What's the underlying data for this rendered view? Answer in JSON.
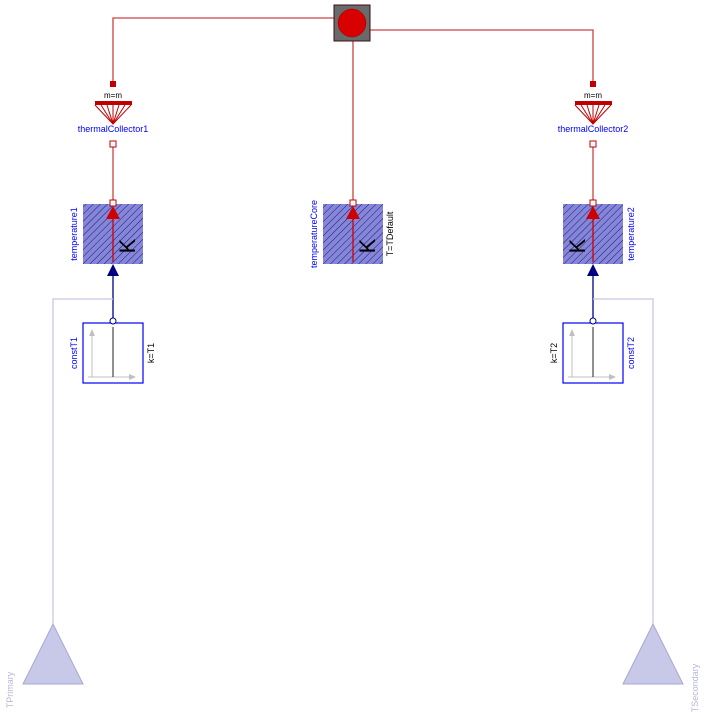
{
  "components": {
    "thermal_collector_1": {
      "name": "thermalCollector1",
      "equation": "m=m"
    },
    "thermal_collector_2": {
      "name": "thermalCollector2",
      "equation": "m=m"
    },
    "temperature_1": {
      "name": "temperature1",
      "unit": "K"
    },
    "temperature_core": {
      "name": "temperatureCore",
      "unit": "K",
      "parameter": "T=TDefault"
    },
    "temperature_2": {
      "name": "temperature2",
      "unit": "K"
    },
    "const_t1": {
      "name": "constT1",
      "parameter": "k=T1"
    },
    "const_t2": {
      "name": "constT2",
      "parameter": "k=T2"
    },
    "input_primary": {
      "name": "TPrimary"
    },
    "input_secondary": {
      "name": "TSecondary"
    }
  },
  "colors": {
    "heat_port_wire": "#d04040",
    "heat_port_fill": "#c00000",
    "signal_wire": "#000080",
    "sensor_fill": "#8080d8",
    "block_border": "#0000ff",
    "faded": "#c8c8e0"
  }
}
